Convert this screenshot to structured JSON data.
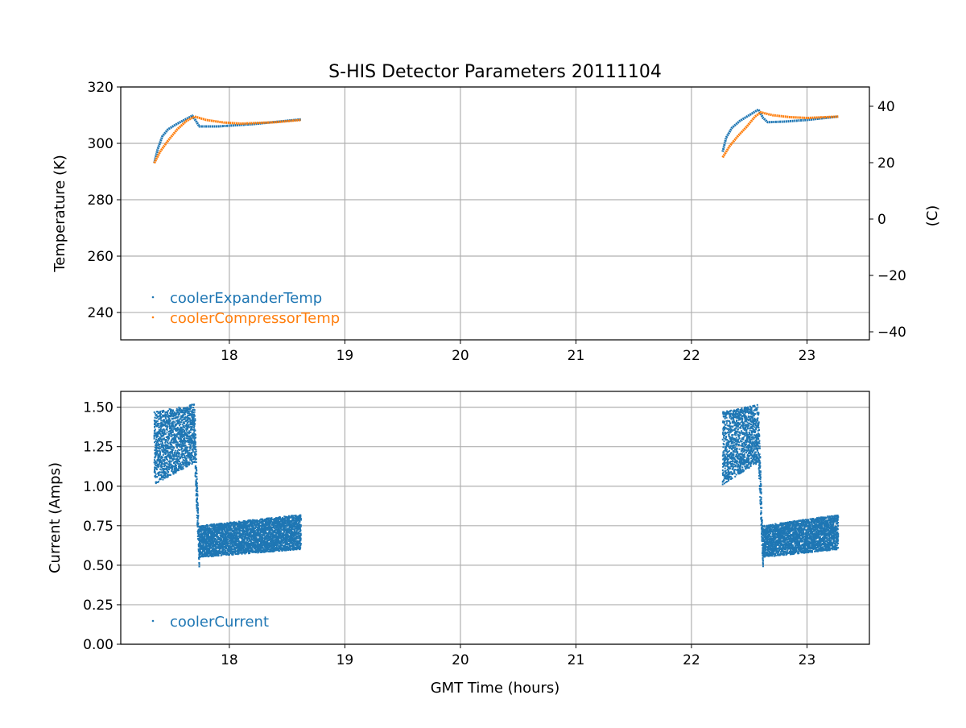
{
  "chart_data": [
    {
      "type": "scatter",
      "title": "S-HIS Detector Parameters 20111104",
      "xlabel": "",
      "ylabel": "Temperature (K)",
      "ylabel_right": "(C)",
      "xlim": [
        17.06,
        23.54
      ],
      "ylim": [
        230.3,
        320
      ],
      "xticks": [
        18,
        19,
        20,
        21,
        22,
        23
      ],
      "yticks": [
        240,
        260,
        280,
        300,
        320
      ],
      "yticks_right": [
        -40,
        -20,
        0,
        20,
        40
      ],
      "grid": true,
      "legend_position": "lower-left",
      "series": [
        {
          "name": "coolerExpanderTemp",
          "color": "#1f77b4",
          "segments": [
            [
              [
                17.35,
                293
              ],
              [
                17.38,
                298
              ],
              [
                17.42,
                302.5
              ],
              [
                17.47,
                305
              ],
              [
                17.55,
                307
              ],
              [
                17.62,
                308.5
              ],
              [
                17.68,
                309.8
              ],
              [
                17.71,
                308
              ],
              [
                17.74,
                306
              ],
              [
                17.9,
                306
              ],
              [
                18.2,
                306.8
              ],
              [
                18.62,
                308.5
              ]
            ],
            [
              [
                22.27,
                297
              ],
              [
                22.3,
                302
              ],
              [
                22.35,
                305.5
              ],
              [
                22.42,
                308
              ],
              [
                22.5,
                310
              ],
              [
                22.58,
                312
              ],
              [
                22.62,
                309
              ],
              [
                22.66,
                307.5
              ],
              [
                22.8,
                307.7
              ],
              [
                23.0,
                308.3
              ],
              [
                23.27,
                309.5
              ]
            ]
          ]
        },
        {
          "name": "coolerCompressorTemp",
          "color": "#ff7f0e",
          "segments": [
            [
              [
                17.35,
                293
              ],
              [
                17.4,
                297
              ],
              [
                17.47,
                301
              ],
              [
                17.55,
                305
              ],
              [
                17.63,
                308
              ],
              [
                17.7,
                309.5
              ],
              [
                17.8,
                308.3
              ],
              [
                17.95,
                307.4
              ],
              [
                18.1,
                307
              ],
              [
                18.4,
                307.5
              ],
              [
                18.62,
                308.3
              ]
            ],
            [
              [
                22.27,
                295
              ],
              [
                22.33,
                299
              ],
              [
                22.4,
                302.5
              ],
              [
                22.48,
                306
              ],
              [
                22.55,
                309.5
              ],
              [
                22.6,
                311
              ],
              [
                22.7,
                310
              ],
              [
                22.85,
                309.3
              ],
              [
                23.0,
                309
              ],
              [
                23.27,
                309.5
              ]
            ]
          ]
        }
      ]
    },
    {
      "type": "scatter",
      "xlabel": "GMT Time (hours)",
      "ylabel": "Current (Amps)",
      "xlim": [
        17.06,
        23.54
      ],
      "ylim": [
        0,
        1.6
      ],
      "xticks": [
        18,
        19,
        20,
        21,
        22,
        23
      ],
      "yticks": [
        0.0,
        0.25,
        0.5,
        0.75,
        1.0,
        1.25,
        1.5
      ],
      "ytick_labels": [
        "0.00",
        "0.25",
        "0.50",
        "0.75",
        "1.00",
        "1.25",
        "1.50"
      ],
      "grid": true,
      "legend_position": "lower-left",
      "series": [
        {
          "name": "coolerCurrent",
          "color": "#1f77b4",
          "bands": [
            {
              "x": [
                17.35,
                17.7
              ],
              "low": [
                1.01,
                1.15
              ],
              "high": [
                1.47,
                1.52
              ]
            },
            {
              "x": [
                17.7,
                17.74
              ],
              "low": [
                1.15,
                0.47
              ],
              "high": [
                1.52,
                0.62
              ]
            },
            {
              "x": [
                17.74,
                18.62
              ],
              "low": [
                0.55,
                0.6
              ],
              "high": [
                0.75,
                0.82
              ]
            },
            {
              "x": [
                22.27,
                22.58
              ],
              "low": [
                1.01,
                1.15
              ],
              "high": [
                1.47,
                1.52
              ]
            },
            {
              "x": [
                22.58,
                22.62
              ],
              "low": [
                1.15,
                0.47
              ],
              "high": [
                1.52,
                0.62
              ]
            },
            {
              "x": [
                22.62,
                23.27
              ],
              "low": [
                0.55,
                0.6
              ],
              "high": [
                0.75,
                0.82
              ]
            }
          ]
        }
      ]
    }
  ]
}
